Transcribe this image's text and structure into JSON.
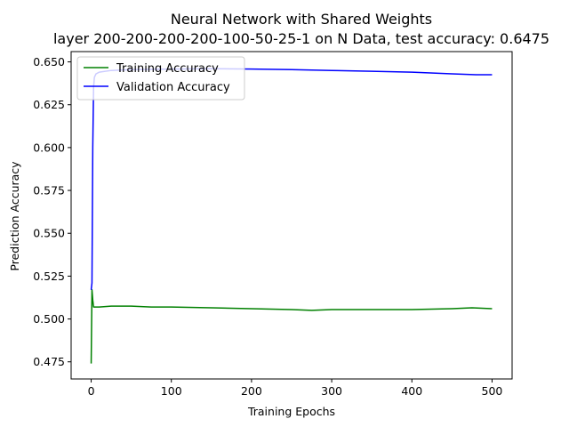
{
  "chart_data": {
    "type": "line",
    "title": "Neural Network with Shared Weights",
    "subtitle": "layer 200-200-200-200-100-50-25-1 on N Data, test accuracy: 0.6475",
    "xlabel": "Training Epochs",
    "ylabel": "Prediction Accuracy",
    "xlim": [
      -25,
      525
    ],
    "ylim": [
      0.465,
      0.656
    ],
    "x_ticks": [
      0,
      100,
      200,
      300,
      400,
      500
    ],
    "y_ticks": [
      0.475,
      0.5,
      0.525,
      0.55,
      0.575,
      0.6,
      0.625,
      0.65
    ],
    "grid": false,
    "legend_position": "top-left",
    "series": [
      {
        "name": "Training Accuracy",
        "color": "#008000",
        "x": [
          0,
          1,
          2,
          3,
          5,
          10,
          25,
          50,
          75,
          100,
          150,
          200,
          250,
          275,
          300,
          350,
          400,
          450,
          475,
          500
        ],
        "y": [
          0.474,
          0.517,
          0.511,
          0.507,
          0.507,
          0.507,
          0.5075,
          0.5075,
          0.507,
          0.507,
          0.5065,
          0.506,
          0.5055,
          0.505,
          0.5055,
          0.5055,
          0.5055,
          0.506,
          0.5065,
          0.506
        ]
      },
      {
        "name": "Validation Accuracy",
        "color": "#0000ff",
        "x": [
          0,
          1,
          2,
          3,
          4,
          6,
          10,
          25,
          50,
          100,
          150,
          200,
          250,
          300,
          350,
          400,
          450,
          480,
          500
        ],
        "y": [
          0.517,
          0.521,
          0.6,
          0.635,
          0.641,
          0.643,
          0.644,
          0.645,
          0.6455,
          0.6458,
          0.646,
          0.6458,
          0.6455,
          0.645,
          0.6445,
          0.644,
          0.643,
          0.6425,
          0.6425
        ]
      }
    ]
  }
}
